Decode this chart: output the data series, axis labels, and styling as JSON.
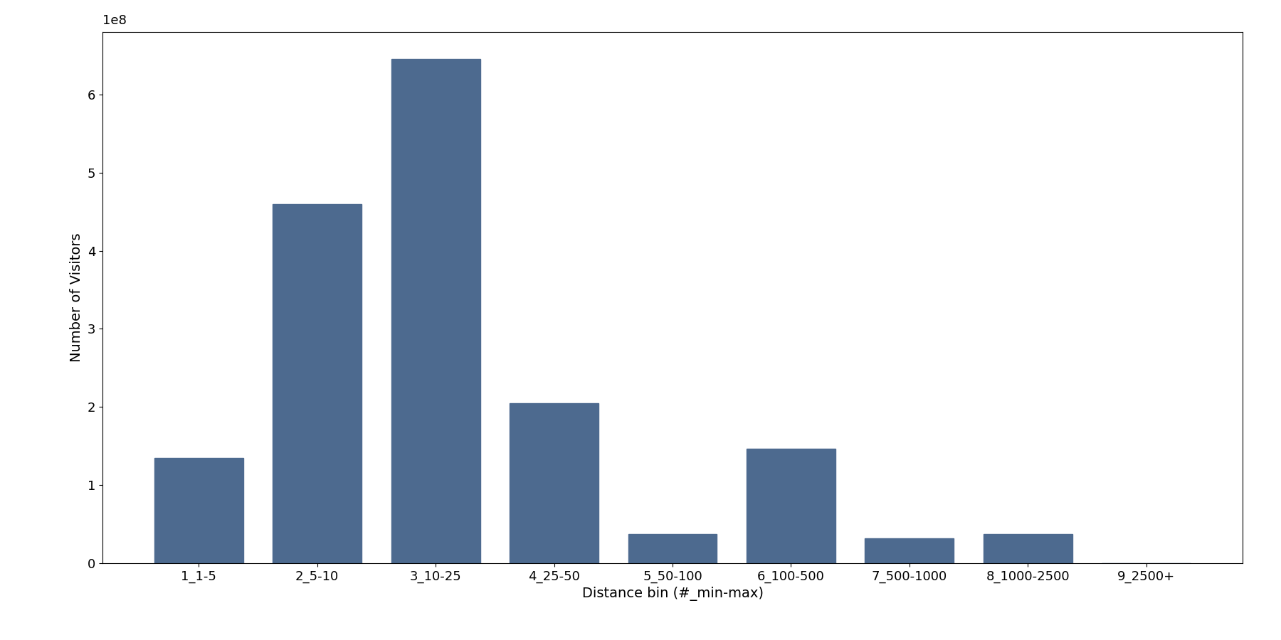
{
  "categories": [
    "1_1-5",
    "2_5-10",
    "3_10-25",
    "4_25-50",
    "5_50-100",
    "6_100-500",
    "7_500-1000",
    "8_1000-2500",
    "9_2500+"
  ],
  "values": [
    135000000.0,
    460000000.0,
    645000000.0,
    205000000.0,
    37000000.0,
    147000000.0,
    32000000.0,
    37000000.0,
    200000.0
  ],
  "bar_color": "#4d6a8f",
  "xlabel": "Distance bin (#_min-max)",
  "ylabel": "Number of Visitors",
  "background_color": "#ffffff",
  "ylim": [
    0,
    680000000.0
  ],
  "yticks": [
    0,
    100000000.0,
    200000000.0,
    300000000.0,
    400000000.0,
    500000000.0,
    600000000.0
  ],
  "ytick_labels": [
    "0",
    "1",
    "2",
    "3",
    "4",
    "5",
    "6"
  ],
  "exponent_label": "1e8",
  "bar_width": 0.75,
  "figsize": [
    18.0,
    9.0
  ],
  "dpi": 100
}
